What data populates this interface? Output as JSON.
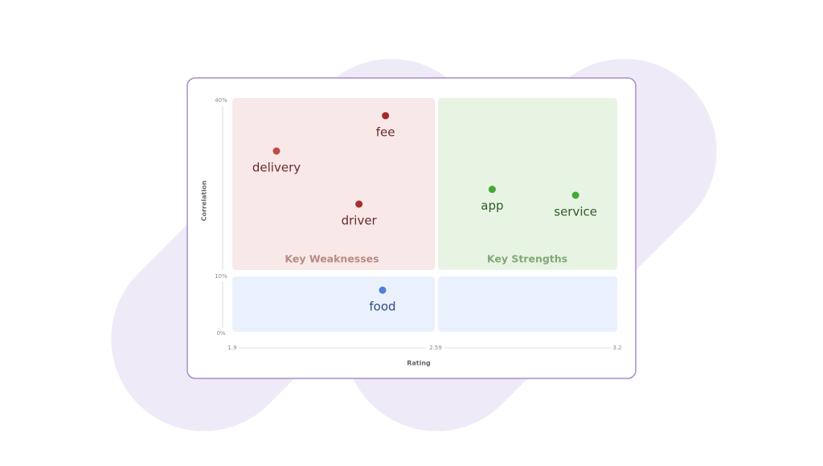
{
  "chart_data": {
    "type": "scatter",
    "xlabel": "Rating",
    "ylabel": "Correlation",
    "xlim": [
      1.9,
      3.2
    ],
    "ylim": [
      0,
      40
    ],
    "xticks": [
      1.9,
      2.59,
      3.2
    ],
    "yticks": [
      {
        "value": 0,
        "label": "0%"
      },
      {
        "value": 10,
        "label": "10%"
      },
      {
        "value": 40,
        "label": "40%"
      }
    ],
    "annotations": [
      "Key Weaknesses",
      "Key Strengths"
    ],
    "series": [
      {
        "name": "fee",
        "color": "#a02828",
        "x": [
          2.42
        ],
        "values": [
          37
        ]
      },
      {
        "name": "delivery",
        "color": "#c04a45",
        "x": [
          2.05
        ],
        "values": [
          31
        ]
      },
      {
        "name": "driver",
        "color": "#a83030",
        "x": [
          2.33
        ],
        "values": [
          22
        ]
      },
      {
        "name": "app",
        "color": "#45a83a",
        "x": [
          2.78
        ],
        "values": [
          24.5
        ]
      },
      {
        "name": "service",
        "color": "#45a83a",
        "x": [
          3.06
        ],
        "values": [
          23.5
        ]
      },
      {
        "name": "food",
        "color": "#4f7fdc",
        "x": [
          2.41
        ],
        "values": [
          7.3
        ]
      }
    ]
  }
}
